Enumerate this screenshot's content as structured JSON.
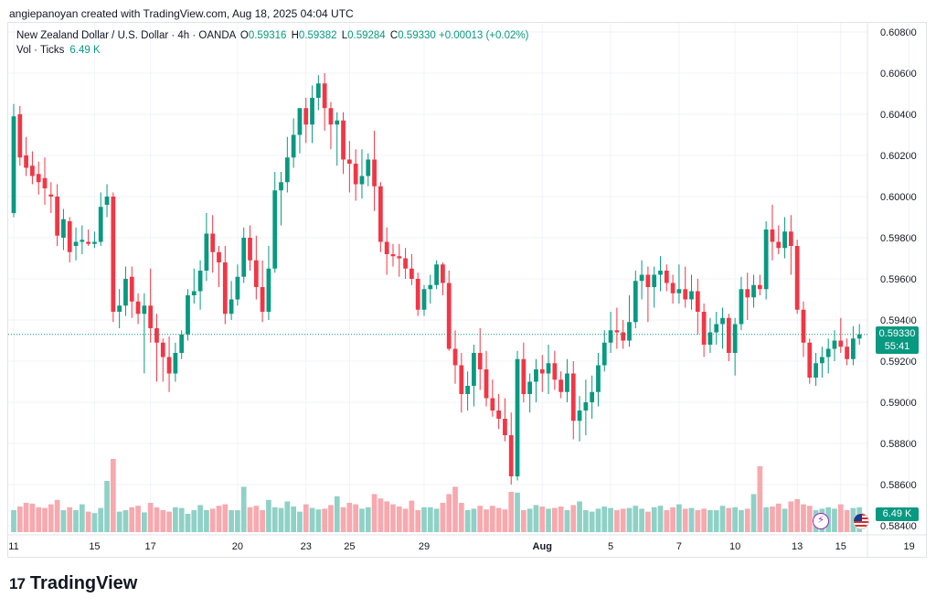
{
  "caption": "angiepanoyan created with TradingView.com, Aug 18, 2025 04:04 UTC",
  "legend": {
    "symbol": "New Zealand Dollar / U.S. Dollar · 4h · OANDA",
    "o_label": "O",
    "o": "0.59316",
    "h_label": "H",
    "h": "0.59382",
    "l_label": "L",
    "l": "0.59284",
    "c_label": "C",
    "c": "0.59330",
    "change": "+0.00013 (+0.02%)",
    "vol_label": "Vol · Ticks",
    "vol_value": "6.49 K"
  },
  "price_tag": {
    "price": "0.59330",
    "countdown": "55:41"
  },
  "vol_tag": "6.49 K",
  "colors": {
    "up": "#089981",
    "down": "#f23645",
    "up_vol": "#8fd1c6",
    "down_vol": "#f7a9ae",
    "grid": "#f0f3fa"
  },
  "icons": {
    "event": "lightning-icon",
    "currency": "usd-flag-icon"
  },
  "footer": {
    "brand": "TradingView"
  },
  "chart_data": {
    "type": "candlestick",
    "title": "New Zealand Dollar / U.S. Dollar · 4h · OANDA",
    "y_ticks": [
      "0.60800",
      "0.60600",
      "0.60400",
      "0.60200",
      "0.60000",
      "0.59800",
      "0.59600",
      "0.59400",
      "0.59200",
      "0.59000",
      "0.58800",
      "0.58600",
      "0.58400"
    ],
    "ylim": [
      0.584,
      0.608
    ],
    "x_ticks": [
      "11",
      "15",
      "17",
      "20",
      "23",
      "25",
      "29",
      "Aug",
      "5",
      "7",
      "10",
      "13",
      "15",
      "19"
    ],
    "last_price": 0.5933,
    "candles": [
      [
        0.5992,
        0.6045,
        0.599,
        0.6039
      ],
      [
        0.604,
        0.6044,
        0.6015,
        0.6019
      ],
      [
        0.602,
        0.6029,
        0.601,
        0.6014
      ],
      [
        0.6015,
        0.6022,
        0.6006,
        0.601
      ],
      [
        0.6011,
        0.6017,
        0.6001,
        0.6007
      ],
      [
        0.6009,
        0.6019,
        0.5996,
        0.6004
      ],
      [
        0.6001,
        0.6007,
        0.5992,
        0.6
      ],
      [
        0.6,
        0.6006,
        0.5976,
        0.5981
      ],
      [
        0.598,
        0.5994,
        0.5974,
        0.5989
      ],
      [
        0.5988,
        0.599,
        0.5968,
        0.5973
      ],
      [
        0.5976,
        0.5985,
        0.5969,
        0.5978
      ],
      [
        0.5978,
        0.5986,
        0.5972,
        0.5979
      ],
      [
        0.5978,
        0.5984,
        0.5976,
        0.5977
      ],
      [
        0.5977,
        0.5983,
        0.5975,
        0.5978
      ],
      [
        0.5978,
        0.6002,
        0.5976,
        0.5995
      ],
      [
        0.5996,
        0.6006,
        0.599,
        0.6
      ],
      [
        0.6,
        0.6002,
        0.5939,
        0.5944
      ],
      [
        0.5944,
        0.5955,
        0.5936,
        0.5947
      ],
      [
        0.5947,
        0.5966,
        0.5942,
        0.596
      ],
      [
        0.5961,
        0.5966,
        0.5941,
        0.5949
      ],
      [
        0.5949,
        0.5953,
        0.5938,
        0.5943
      ],
      [
        0.5943,
        0.5953,
        0.5914,
        0.5947
      ],
      [
        0.5947,
        0.5965,
        0.5929,
        0.5936
      ],
      [
        0.5936,
        0.5943,
        0.591,
        0.5929
      ],
      [
        0.5929,
        0.5931,
        0.591,
        0.5922
      ],
      [
        0.5922,
        0.5932,
        0.5905,
        0.5914
      ],
      [
        0.5914,
        0.5929,
        0.591,
        0.5924
      ],
      [
        0.5924,
        0.5935,
        0.5921,
        0.5933
      ],
      [
        0.5933,
        0.5955,
        0.593,
        0.5952
      ],
      [
        0.5952,
        0.5965,
        0.5948,
        0.5954
      ],
      [
        0.5954,
        0.5969,
        0.5945,
        0.5964
      ],
      [
        0.5964,
        0.5992,
        0.5959,
        0.5982
      ],
      [
        0.5982,
        0.5991,
        0.5963,
        0.5973
      ],
      [
        0.5973,
        0.5976,
        0.5956,
        0.5968
      ],
      [
        0.5968,
        0.5976,
        0.5938,
        0.5943
      ],
      [
        0.5943,
        0.5959,
        0.594,
        0.595
      ],
      [
        0.595,
        0.5967,
        0.5947,
        0.5961
      ],
      [
        0.5961,
        0.5985,
        0.5958,
        0.598
      ],
      [
        0.598,
        0.5986,
        0.5964,
        0.5969
      ],
      [
        0.5969,
        0.5981,
        0.595,
        0.5956
      ],
      [
        0.5956,
        0.5969,
        0.5939,
        0.5944
      ],
      [
        0.5944,
        0.5976,
        0.594,
        0.5965
      ],
      [
        0.5965,
        0.6012,
        0.5963,
        0.6003
      ],
      [
        0.6003,
        0.6012,
        0.5986,
        0.6007
      ],
      [
        0.6007,
        0.6029,
        0.6002,
        0.6019
      ],
      [
        0.6019,
        0.6038,
        0.6014,
        0.603
      ],
      [
        0.603,
        0.6043,
        0.6021,
        0.6043
      ],
      [
        0.6043,
        0.6048,
        0.6026,
        0.6035
      ],
      [
        0.6035,
        0.6054,
        0.6026,
        0.6048
      ],
      [
        0.6048,
        0.6059,
        0.6042,
        0.6055
      ],
      [
        0.6055,
        0.606,
        0.6032,
        0.6043
      ],
      [
        0.6043,
        0.6046,
        0.6023,
        0.6035
      ],
      [
        0.6035,
        0.6041,
        0.6015,
        0.6037
      ],
      [
        0.6037,
        0.6041,
        0.6011,
        0.6018
      ],
      [
        0.6018,
        0.6027,
        0.6002,
        0.6016
      ],
      [
        0.6016,
        0.6023,
        0.5998,
        0.6006
      ],
      [
        0.6006,
        0.6023,
        0.5999,
        0.601
      ],
      [
        0.601,
        0.6021,
        0.6005,
        0.6018
      ],
      [
        0.6018,
        0.6032,
        0.5993,
        0.6005
      ],
      [
        0.6005,
        0.6007,
        0.5973,
        0.5978
      ],
      [
        0.5978,
        0.5985,
        0.5962,
        0.5972
      ],
      [
        0.5972,
        0.5977,
        0.5966,
        0.5971
      ],
      [
        0.5971,
        0.5977,
        0.5961,
        0.597
      ],
      [
        0.597,
        0.5975,
        0.596,
        0.5965
      ],
      [
        0.5965,
        0.5972,
        0.5957,
        0.596
      ],
      [
        0.596,
        0.5963,
        0.5942,
        0.5945
      ],
      [
        0.5945,
        0.5957,
        0.5942,
        0.5955
      ],
      [
        0.5955,
        0.5962,
        0.5948,
        0.5957
      ],
      [
        0.5957,
        0.5969,
        0.5955,
        0.5967
      ],
      [
        0.5967,
        0.5968,
        0.5952,
        0.5958
      ],
      [
        0.5958,
        0.5964,
        0.5925,
        0.5926
      ],
      [
        0.5926,
        0.5935,
        0.5909,
        0.5918
      ],
      [
        0.5918,
        0.5924,
        0.5895,
        0.5904
      ],
      [
        0.5904,
        0.5915,
        0.5896,
        0.5908
      ],
      [
        0.5908,
        0.5928,
        0.5898,
        0.5924
      ],
      [
        0.5924,
        0.5936,
        0.5906,
        0.5916
      ],
      [
        0.5916,
        0.5925,
        0.5898,
        0.5902
      ],
      [
        0.5902,
        0.5911,
        0.5893,
        0.5896
      ],
      [
        0.5896,
        0.5904,
        0.5887,
        0.5892
      ],
      [
        0.5892,
        0.5902,
        0.5881,
        0.5884
      ],
      [
        0.5884,
        0.5895,
        0.586,
        0.5864
      ],
      [
        0.5864,
        0.5925,
        0.5862,
        0.5921
      ],
      [
        0.5921,
        0.5929,
        0.59,
        0.5904
      ],
      [
        0.5904,
        0.5914,
        0.5895,
        0.591
      ],
      [
        0.591,
        0.5921,
        0.59,
        0.5916
      ],
      [
        0.5916,
        0.5923,
        0.5905,
        0.5914
      ],
      [
        0.5914,
        0.5928,
        0.5904,
        0.5919
      ],
      [
        0.5919,
        0.5925,
        0.5906,
        0.5911
      ],
      [
        0.5911,
        0.5915,
        0.5902,
        0.5905
      ],
      [
        0.5905,
        0.5921,
        0.59,
        0.5914
      ],
      [
        0.5914,
        0.592,
        0.5882,
        0.5891
      ],
      [
        0.5891,
        0.5903,
        0.5881,
        0.5896
      ],
      [
        0.5896,
        0.5911,
        0.5884,
        0.59
      ],
      [
        0.59,
        0.5913,
        0.5892,
        0.5905
      ],
      [
        0.5905,
        0.5924,
        0.5898,
        0.5918
      ],
      [
        0.5918,
        0.5935,
        0.5915,
        0.5929
      ],
      [
        0.5929,
        0.5944,
        0.5924,
        0.5935
      ],
      [
        0.5935,
        0.5946,
        0.5926,
        0.5934
      ],
      [
        0.5934,
        0.594,
        0.5926,
        0.593
      ],
      [
        0.593,
        0.5952,
        0.5927,
        0.5939
      ],
      [
        0.5939,
        0.5964,
        0.5936,
        0.5959
      ],
      [
        0.5959,
        0.5969,
        0.595,
        0.5962
      ],
      [
        0.5962,
        0.5966,
        0.5939,
        0.5956
      ],
      [
        0.5956,
        0.5966,
        0.5946,
        0.5962
      ],
      [
        0.5962,
        0.5971,
        0.5954,
        0.5964
      ],
      [
        0.5964,
        0.5967,
        0.5954,
        0.5958
      ],
      [
        0.5958,
        0.5962,
        0.5948,
        0.5953
      ],
      [
        0.5953,
        0.5967,
        0.5948,
        0.5955
      ],
      [
        0.5955,
        0.5966,
        0.5946,
        0.595
      ],
      [
        0.595,
        0.5962,
        0.5945,
        0.5954
      ],
      [
        0.5954,
        0.596,
        0.5933,
        0.5944
      ],
      [
        0.5944,
        0.5948,
        0.5922,
        0.5928
      ],
      [
        0.5928,
        0.5941,
        0.5924,
        0.5934
      ],
      [
        0.5934,
        0.5944,
        0.5928,
        0.5938
      ],
      [
        0.5938,
        0.5946,
        0.5926,
        0.5941
      ],
      [
        0.5941,
        0.5943,
        0.592,
        0.5924
      ],
      [
        0.5924,
        0.5941,
        0.5913,
        0.5938
      ],
      [
        0.5938,
        0.5961,
        0.5935,
        0.5955
      ],
      [
        0.5955,
        0.5963,
        0.594,
        0.5951
      ],
      [
        0.5951,
        0.5962,
        0.5946,
        0.5957
      ],
      [
        0.5957,
        0.5962,
        0.5952,
        0.5955
      ],
      [
        0.5955,
        0.5988,
        0.595,
        0.5984
      ],
      [
        0.5984,
        0.5996,
        0.5969,
        0.5978
      ],
      [
        0.5978,
        0.5986,
        0.5972,
        0.5975
      ],
      [
        0.5975,
        0.599,
        0.597,
        0.5983
      ],
      [
        0.5983,
        0.5991,
        0.5962,
        0.5976
      ],
      [
        0.5976,
        0.5979,
        0.5943,
        0.5945
      ],
      [
        0.5945,
        0.5949,
        0.5922,
        0.5929
      ],
      [
        0.5929,
        0.5931,
        0.5909,
        0.5912
      ],
      [
        0.5912,
        0.5924,
        0.5908,
        0.5919
      ],
      [
        0.5919,
        0.5927,
        0.5912,
        0.5922
      ],
      [
        0.5922,
        0.5931,
        0.5914,
        0.5926
      ],
      [
        0.5926,
        0.5935,
        0.592,
        0.593
      ],
      [
        0.593,
        0.5941,
        0.5924,
        0.5927
      ],
      [
        0.5927,
        0.5931,
        0.5918,
        0.5921
      ],
      [
        0.5921,
        0.5937,
        0.5918,
        0.5931
      ],
      [
        0.5931,
        0.5938,
        0.5928,
        0.5933
      ]
    ],
    "volumes": [
      0.3,
      0.35,
      0.4,
      0.39,
      0.34,
      0.33,
      0.38,
      0.44,
      0.3,
      0.34,
      0.3,
      0.38,
      0.28,
      0.26,
      0.33,
      0.7,
      0.34,
      0.28,
      0.3,
      0.34,
      0.36,
      0.27,
      0.4,
      0.34,
      0.3,
      0.28,
      0.34,
      0.33,
      0.25,
      0.3,
      0.37,
      0.3,
      0.32,
      0.36,
      0.38,
      0.3,
      0.3,
      0.33,
      0.34,
      0.36,
      0.3,
      0.44,
      0.34,
      0.33,
      0.42,
      0.35,
      0.28,
      0.38,
      0.33,
      0.31,
      0.32,
      0.37,
      0.49,
      0.34,
      0.4,
      0.38,
      0.32,
      0.34,
      0.52,
      0.46,
      0.42,
      0.38,
      0.35,
      0.32,
      0.43,
      0.3,
      0.34,
      0.34,
      0.32,
      0.4,
      0.52,
      0.45,
      0.4,
      0.3,
      0.32,
      0.36,
      0.31,
      0.36,
      0.33,
      0.31,
      0.55,
      0.54,
      0.3,
      0.32,
      0.37,
      0.35,
      0.32,
      0.33,
      0.35,
      0.3,
      0.37,
      0.42,
      0.3,
      0.28,
      0.32,
      0.35,
      0.33,
      0.3,
      0.32,
      0.33,
      0.36,
      0.32,
      0.28,
      0.34,
      0.36,
      0.3,
      0.34,
      0.38,
      0.32,
      0.33,
      0.3,
      0.32,
      0.3,
      0.3,
      0.36,
      0.33,
      0.34,
      0.3,
      0.32,
      0.52,
      0.3,
      0.34,
      0.35,
      0.39,
      0.32,
      0.42,
      0.45,
      0.38,
      0.36,
      0.3,
      0.32,
      0.34,
      0.32,
      0.38,
      0.3,
      0.33,
      0.34
    ],
    "volume_highlights": {
      "16": 1.0,
      "120": 0.9,
      "37": 0.62,
      "71": 0.62
    }
  }
}
